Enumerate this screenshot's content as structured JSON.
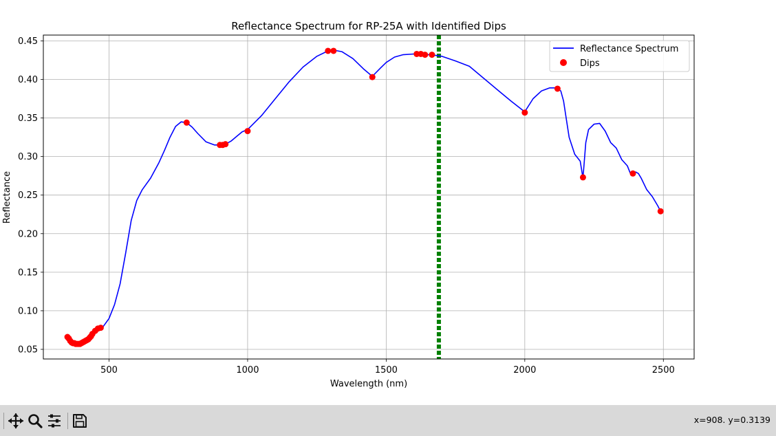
{
  "chart_data": {
    "type": "line",
    "title": "Reflectance Spectrum for RP-25A with Identified Dips",
    "xlabel": "Wavelength (nm)",
    "ylabel": "Reflectance",
    "xlim": [
      263,
      2611
    ],
    "ylim": [
      0.0375,
      0.4575
    ],
    "xticks": [
      500,
      1000,
      1500,
      2000,
      2500
    ],
    "yticks": [
      0.05,
      0.1,
      0.15,
      0.2,
      0.25,
      0.3,
      0.35,
      0.4,
      0.45
    ],
    "grid": true,
    "legend_position": "top-right",
    "colors": {
      "spectrum": "#0000ff",
      "dips": "#ff0000",
      "marker_line": "#008000"
    },
    "series": [
      {
        "name": "Reflectance Spectrum",
        "kind": "line",
        "x": [
          350,
          360,
          370,
          380,
          390,
          400,
          410,
          420,
          430,
          440,
          450,
          460,
          470,
          480,
          500,
          520,
          540,
          560,
          580,
          600,
          620,
          650,
          680,
          700,
          720,
          740,
          760,
          780,
          800,
          820,
          850,
          880,
          900,
          920,
          940,
          960,
          980,
          1000,
          1050,
          1100,
          1150,
          1200,
          1250,
          1290,
          1310,
          1340,
          1380,
          1420,
          1450,
          1480,
          1500,
          1530,
          1560,
          1600,
          1620,
          1640,
          1660,
          1700,
          1750,
          1800,
          1850,
          1900,
          1950,
          2000,
          2030,
          2060,
          2090,
          2110,
          2120,
          2130,
          2140,
          2150,
          2160,
          2180,
          2200,
          2210,
          2220,
          2230,
          2250,
          2270,
          2290,
          2310,
          2330,
          2350,
          2370,
          2380,
          2390,
          2400,
          2410,
          2420,
          2440,
          2460,
          2480,
          2490
        ],
        "y": [
          0.066,
          0.062,
          0.059,
          0.057,
          0.057,
          0.058,
          0.06,
          0.062,
          0.065,
          0.07,
          0.074,
          0.077,
          0.078,
          0.08,
          0.09,
          0.108,
          0.135,
          0.175,
          0.217,
          0.243,
          0.257,
          0.272,
          0.292,
          0.308,
          0.325,
          0.339,
          0.345,
          0.344,
          0.338,
          0.33,
          0.319,
          0.315,
          0.315,
          0.316,
          0.32,
          0.326,
          0.332,
          0.335,
          0.353,
          0.375,
          0.397,
          0.416,
          0.43,
          0.437,
          0.438,
          0.436,
          0.427,
          0.413,
          0.404,
          0.415,
          0.422,
          0.429,
          0.432,
          0.433,
          0.433,
          0.432,
          0.432,
          0.43,
          0.424,
          0.417,
          0.402,
          0.387,
          0.372,
          0.358,
          0.375,
          0.385,
          0.389,
          0.389,
          0.388,
          0.385,
          0.372,
          0.348,
          0.325,
          0.303,
          0.294,
          0.272,
          0.318,
          0.335,
          0.342,
          0.343,
          0.333,
          0.318,
          0.311,
          0.296,
          0.288,
          0.279,
          0.279,
          0.28,
          0.278,
          0.272,
          0.257,
          0.248,
          0.236,
          0.229
        ]
      },
      {
        "name": "Dips",
        "kind": "scatter",
        "x": [
          350,
          355,
          360,
          365,
          370,
          375,
          380,
          385,
          390,
          395,
          400,
          405,
          410,
          415,
          420,
          425,
          430,
          435,
          440,
          450,
          460,
          470,
          780,
          900,
          910,
          920,
          1000,
          1290,
          1310,
          1450,
          1610,
          1625,
          1640,
          1665,
          2000,
          2118,
          2210,
          2390,
          2490
        ],
        "y": [
          0.066,
          0.064,
          0.061,
          0.059,
          0.058,
          0.058,
          0.057,
          0.057,
          0.057,
          0.057,
          0.058,
          0.059,
          0.06,
          0.061,
          0.062,
          0.063,
          0.065,
          0.067,
          0.07,
          0.074,
          0.077,
          0.078,
          0.344,
          0.315,
          0.315,
          0.316,
          0.333,
          0.437,
          0.437,
          0.403,
          0.433,
          0.433,
          0.432,
          0.432,
          0.357,
          0.388,
          0.273,
          0.278,
          0.229
        ]
      }
    ],
    "vertical_line": {
      "x": 1690,
      "style": "dashed"
    }
  },
  "toolbar": {
    "coord_readout": "x=908. y=0.3139",
    "icons": [
      "pan-icon",
      "zoom-icon",
      "configure-subplots-icon",
      "save-icon"
    ]
  }
}
